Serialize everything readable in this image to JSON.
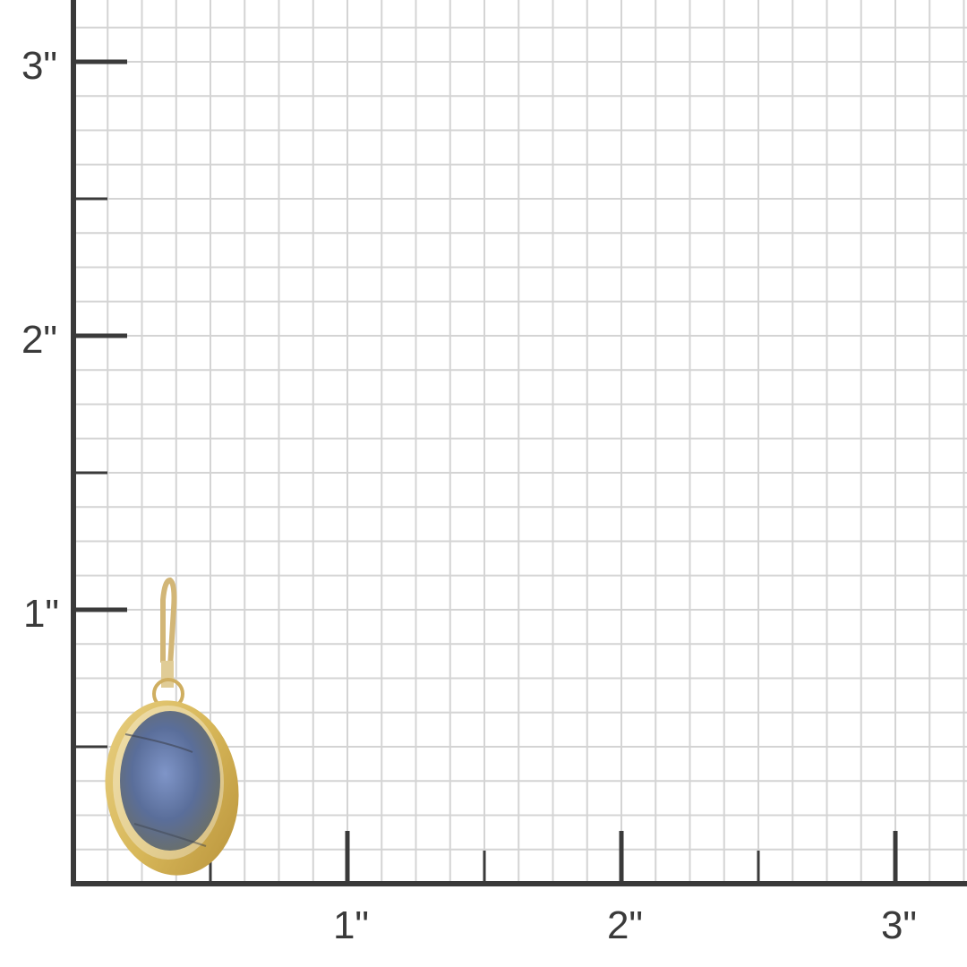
{
  "ruler": {
    "unit": "inch",
    "x_labels": [
      "1\"",
      "2\"",
      "3\""
    ],
    "y_labels": [
      "1\"",
      "2\"",
      "3\""
    ],
    "grid_subdivisions_per_inch": 8,
    "axis_color": "#3a3a3a",
    "grid_color": "#d4d4d4"
  },
  "product": {
    "type": "earring",
    "stone_color": "#5a6e9a",
    "metal_color": "#d8b85a"
  }
}
